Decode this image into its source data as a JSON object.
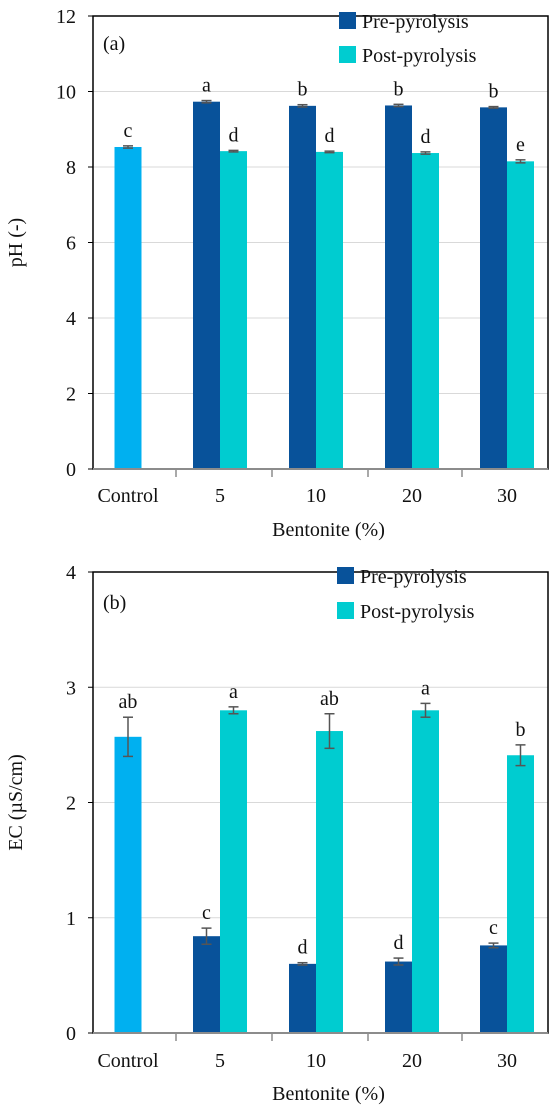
{
  "chart_data": [
    {
      "type": "bar",
      "panel_label": "(a)",
      "xlabel": "Bentonite (%)",
      "ylabel": "pH (-)",
      "ylim": [
        0,
        12
      ],
      "yticks": [
        0,
        2,
        4,
        6,
        8,
        10,
        12
      ],
      "categories": [
        "Control",
        "5",
        "10",
        "20",
        "30"
      ],
      "grid": true,
      "legend_position": "top-right",
      "legend": [
        "Pre-pyrolysis",
        "Post-pyrolysis"
      ],
      "control": {
        "value": 8.53,
        "error": 0.03,
        "letter": "c",
        "color": "#00b0f0"
      },
      "series": [
        {
          "name": "Pre-pyrolysis",
          "color": "#08529a",
          "values": [
            null,
            9.73,
            9.62,
            9.63,
            9.58
          ],
          "errors": [
            null,
            0.03,
            0.03,
            0.03,
            0.02
          ],
          "letters": [
            null,
            "a",
            "b",
            "b",
            "b"
          ]
        },
        {
          "name": "Post-pyrolysis",
          "color": "#00ccd0",
          "values": [
            null,
            8.42,
            8.4,
            8.37,
            8.15
          ],
          "errors": [
            null,
            0.02,
            0.02,
            0.03,
            0.04
          ],
          "letters": [
            null,
            "d",
            "d",
            "d",
            "e"
          ]
        }
      ]
    },
    {
      "type": "bar",
      "panel_label": "(b)",
      "xlabel": "Bentonite (%)",
      "ylabel": "EC (µS/cm)",
      "ylim": [
        0,
        4
      ],
      "yticks": [
        0,
        1,
        2,
        3,
        4
      ],
      "categories": [
        "Control",
        "5",
        "10",
        "20",
        "30"
      ],
      "grid": true,
      "legend_position": "top-right",
      "legend": [
        "Pre-pyrolysis",
        "Post-pyrolysis"
      ],
      "control": {
        "value": 2.57,
        "error": 0.17,
        "letter": "ab",
        "color": "#00b0f0"
      },
      "series": [
        {
          "name": "Pre-pyrolysis",
          "color": "#08529a",
          "values": [
            null,
            0.84,
            0.6,
            0.62,
            0.76
          ],
          "errors": [
            null,
            0.07,
            0.01,
            0.03,
            0.02
          ],
          "letters": [
            null,
            "c",
            "d",
            "d",
            "c"
          ]
        },
        {
          "name": "Post-pyrolysis",
          "color": "#00ccd0",
          "values": [
            null,
            2.8,
            2.62,
            2.8,
            2.41
          ],
          "errors": [
            null,
            0.03,
            0.15,
            0.06,
            0.09
          ],
          "letters": [
            null,
            "a",
            "ab",
            "a",
            "b"
          ]
        }
      ]
    }
  ]
}
